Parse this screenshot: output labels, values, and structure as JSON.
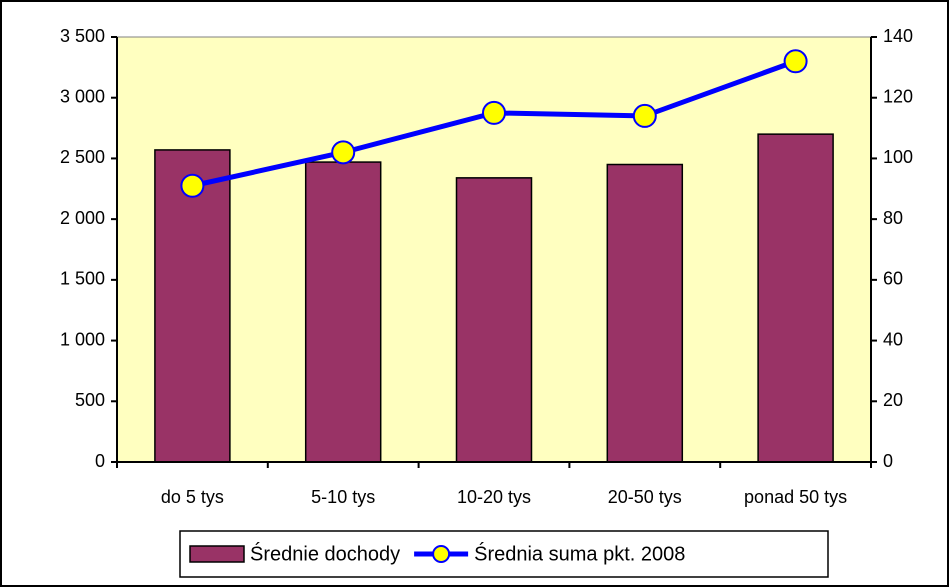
{
  "chart_data": {
    "type": "bar_line",
    "categories": [
      "do 5 tys",
      "5-10 tys",
      "10-20 tys",
      "20-50 tys",
      "ponad 50 tys"
    ],
    "series": [
      {
        "name": "Średnie dochody",
        "type": "bar",
        "color": "#993366",
        "values": [
          2570,
          2470,
          2340,
          2450,
          2700
        ]
      },
      {
        "name": "Średnia suma pkt. 2008",
        "type": "line",
        "axis": "y2",
        "color": "#0000ff",
        "marker_color": "#ffff00",
        "values": [
          91,
          102,
          115,
          114,
          132
        ]
      }
    ],
    "ylim": [
      0,
      3500
    ],
    "yticks": [
      0,
      500,
      {
        "value": 1000,
        "label": "1 000"
      },
      {
        "value": 1500,
        "label": "1 500"
      },
      {
        "value": 2000,
        "label": "2 000"
      },
      {
        "value": 2500,
        "label": "2 500"
      },
      {
        "value": 3000,
        "label": "3 000"
      },
      {
        "value": 3500,
        "label": "3 500"
      }
    ],
    "y2lim": [
      0,
      140
    ],
    "y2ticks": [
      0,
      20,
      40,
      60,
      80,
      100,
      120,
      140
    ],
    "plot_background": "#ffffc0",
    "legend": "bottom"
  }
}
